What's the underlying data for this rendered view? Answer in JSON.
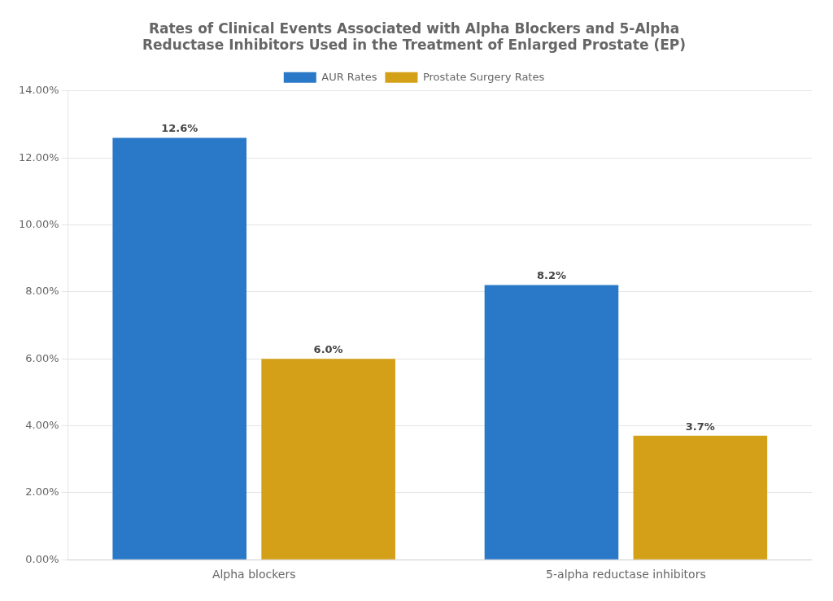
{
  "chart_data": {
    "type": "bar",
    "title": [
      "Rates of Clinical Events Associated with Alpha Blockers and 5-Alpha",
      "Reductase Inhibitors Used in the Treatment of Enlarged Prostate (EP)"
    ],
    "categories": [
      "Alpha blockers",
      "5-alpha reductase inhibitors"
    ],
    "series": [
      {
        "name": "AUR Rates",
        "color": "#2979C8",
        "values": [
          0.126,
          0.082
        ],
        "value_labels": [
          "12.6%",
          "8.2%"
        ]
      },
      {
        "name": "Prostate Surgery Rates",
        "color": "#D4A017",
        "values": [
          0.06,
          0.037
        ],
        "value_labels": [
          "6.0%",
          "3.7%"
        ]
      }
    ],
    "ylim": [
      0,
      0.14
    ],
    "yticks": [
      {
        "value": 0.0,
        "label": "0.00%"
      },
      {
        "value": 0.02,
        "label": "2.00%"
      },
      {
        "value": 0.04,
        "label": "4.00%"
      },
      {
        "value": 0.06,
        "label": "6.00%"
      },
      {
        "value": 0.08,
        "label": "8.00%"
      },
      {
        "value": 0.1,
        "label": "10.00%"
      },
      {
        "value": 0.12,
        "label": "12.00%"
      },
      {
        "value": 0.14,
        "label": "14.00%"
      }
    ],
    "grid": true,
    "legend": "top",
    "data_labels": true
  }
}
